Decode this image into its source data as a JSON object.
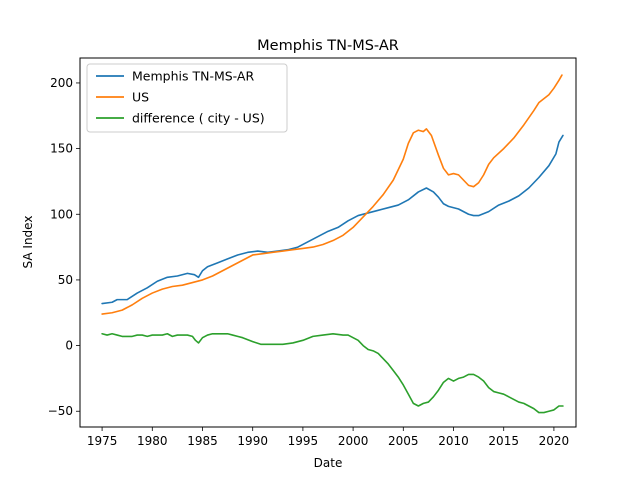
{
  "chart_data": {
    "type": "line",
    "title": "Memphis TN-MS-AR",
    "xlabel": "Date",
    "ylabel": "SA Index",
    "xlim": [
      1972.8,
      2022.2
    ],
    "ylim": [
      -62,
      219
    ],
    "xticks": [
      1975,
      1980,
      1985,
      1990,
      1995,
      2000,
      2005,
      2010,
      2015,
      2020
    ],
    "yticks": [
      -50,
      0,
      50,
      100,
      150,
      200
    ],
    "grid": false,
    "legend_position": "top-left",
    "series": [
      {
        "name": "Memphis TN-MS-AR",
        "color": "#1f77b4",
        "points": [
          [
            1975.0,
            32
          ],
          [
            1976.0,
            33
          ],
          [
            1976.5,
            35
          ],
          [
            1977.5,
            35
          ],
          [
            1978.5,
            40
          ],
          [
            1979.5,
            44
          ],
          [
            1980.5,
            49
          ],
          [
            1981.5,
            52
          ],
          [
            1982.5,
            53
          ],
          [
            1983.5,
            55
          ],
          [
            1984.2,
            54
          ],
          [
            1984.6,
            52
          ],
          [
            1985.0,
            57
          ],
          [
            1985.5,
            60
          ],
          [
            1986.5,
            63
          ],
          [
            1987.5,
            66
          ],
          [
            1988.5,
            69
          ],
          [
            1989.5,
            71
          ],
          [
            1990.5,
            72
          ],
          [
            1991.5,
            71
          ],
          [
            1992.5,
            72
          ],
          [
            1993.5,
            73
          ],
          [
            1994.5,
            75
          ],
          [
            1995.5,
            79
          ],
          [
            1996.5,
            83
          ],
          [
            1997.5,
            87
          ],
          [
            1998.5,
            90
          ],
          [
            1999.5,
            95
          ],
          [
            2000.5,
            99
          ],
          [
            2001.5,
            101
          ],
          [
            2002.5,
            103
          ],
          [
            2003.5,
            105
          ],
          [
            2004.5,
            107
          ],
          [
            2005.5,
            111
          ],
          [
            2006.5,
            117
          ],
          [
            2007.3,
            120
          ],
          [
            2008.0,
            117
          ],
          [
            2008.5,
            113
          ],
          [
            2009.0,
            108
          ],
          [
            2009.5,
            106
          ],
          [
            2010.5,
            104
          ],
          [
            2011.5,
            100
          ],
          [
            2012.0,
            99
          ],
          [
            2012.5,
            99
          ],
          [
            2013.5,
            102
          ],
          [
            2014.5,
            107
          ],
          [
            2015.5,
            110
          ],
          [
            2016.5,
            114
          ],
          [
            2017.5,
            120
          ],
          [
            2018.5,
            128
          ],
          [
            2019.5,
            137
          ],
          [
            2020.2,
            146
          ],
          [
            2020.5,
            155
          ],
          [
            2020.9,
            160
          ]
        ]
      },
      {
        "name": "US",
        "color": "#ff7f0e",
        "points": [
          [
            1975.0,
            24
          ],
          [
            1976.0,
            25
          ],
          [
            1977.0,
            27
          ],
          [
            1978.0,
            31
          ],
          [
            1979.0,
            36
          ],
          [
            1980.0,
            40
          ],
          [
            1981.0,
            43
          ],
          [
            1982.0,
            45
          ],
          [
            1983.0,
            46
          ],
          [
            1984.0,
            48
          ],
          [
            1985.0,
            50
          ],
          [
            1986.0,
            53
          ],
          [
            1987.0,
            57
          ],
          [
            1988.0,
            61
          ],
          [
            1989.0,
            65
          ],
          [
            1990.0,
            69
          ],
          [
            1991.0,
            70
          ],
          [
            1992.0,
            71
          ],
          [
            1993.0,
            72
          ],
          [
            1994.0,
            73
          ],
          [
            1995.0,
            74
          ],
          [
            1996.0,
            75
          ],
          [
            1997.0,
            77
          ],
          [
            1998.0,
            80
          ],
          [
            1999.0,
            84
          ],
          [
            2000.0,
            90
          ],
          [
            2001.0,
            98
          ],
          [
            2002.0,
            106
          ],
          [
            2003.0,
            115
          ],
          [
            2004.0,
            126
          ],
          [
            2005.0,
            142
          ],
          [
            2005.5,
            154
          ],
          [
            2006.0,
            162
          ],
          [
            2006.5,
            164
          ],
          [
            2007.0,
            163
          ],
          [
            2007.3,
            165
          ],
          [
            2007.8,
            160
          ],
          [
            2008.5,
            145
          ],
          [
            2009.0,
            135
          ],
          [
            2009.5,
            130
          ],
          [
            2010.0,
            131
          ],
          [
            2010.5,
            130
          ],
          [
            2011.0,
            126
          ],
          [
            2011.5,
            122
          ],
          [
            2012.0,
            121
          ],
          [
            2012.5,
            124
          ],
          [
            2013.0,
            130
          ],
          [
            2013.5,
            138
          ],
          [
            2014.0,
            143
          ],
          [
            2015.0,
            150
          ],
          [
            2016.0,
            158
          ],
          [
            2017.0,
            168
          ],
          [
            2018.0,
            179
          ],
          [
            2018.5,
            185
          ],
          [
            2019.5,
            191
          ],
          [
            2020.0,
            196
          ],
          [
            2020.5,
            202
          ],
          [
            2020.8,
            206
          ]
        ]
      },
      {
        "name": "difference ( city - US)",
        "color": "#2ca02c",
        "points": [
          [
            1975.0,
            9
          ],
          [
            1975.5,
            8
          ],
          [
            1976.0,
            9
          ],
          [
            1976.5,
            8
          ],
          [
            1977.0,
            7
          ],
          [
            1977.5,
            7
          ],
          [
            1978.0,
            7
          ],
          [
            1978.5,
            8
          ],
          [
            1979.0,
            8
          ],
          [
            1979.5,
            7
          ],
          [
            1980.0,
            8
          ],
          [
            1981.0,
            8
          ],
          [
            1981.5,
            9
          ],
          [
            1982.0,
            7
          ],
          [
            1982.5,
            8
          ],
          [
            1983.0,
            8
          ],
          [
            1983.5,
            8
          ],
          [
            1984.0,
            7
          ],
          [
            1984.3,
            4
          ],
          [
            1984.6,
            2
          ],
          [
            1985.0,
            6
          ],
          [
            1985.5,
            8
          ],
          [
            1986.0,
            9
          ],
          [
            1986.5,
            9
          ],
          [
            1987.0,
            9
          ],
          [
            1987.5,
            9
          ],
          [
            1988.0,
            8
          ],
          [
            1988.5,
            7
          ],
          [
            1989.0,
            6
          ],
          [
            1990.0,
            3
          ],
          [
            1990.8,
            1
          ],
          [
            1991.5,
            1
          ],
          [
            1992.5,
            1
          ],
          [
            1993.0,
            1
          ],
          [
            1994.0,
            2
          ],
          [
            1995.0,
            4
          ],
          [
            1996.0,
            7
          ],
          [
            1997.0,
            8
          ],
          [
            1998.0,
            9
          ],
          [
            1999.0,
            8
          ],
          [
            1999.5,
            8
          ],
          [
            2000.0,
            6
          ],
          [
            2000.5,
            4
          ],
          [
            2001.0,
            0
          ],
          [
            2001.5,
            -3
          ],
          [
            2002.0,
            -4
          ],
          [
            2002.5,
            -6
          ],
          [
            2003.0,
            -10
          ],
          [
            2003.5,
            -14
          ],
          [
            2004.0,
            -19
          ],
          [
            2004.5,
            -24
          ],
          [
            2005.0,
            -30
          ],
          [
            2005.5,
            -37
          ],
          [
            2006.0,
            -44
          ],
          [
            2006.5,
            -46
          ],
          [
            2007.0,
            -44
          ],
          [
            2007.5,
            -43
          ],
          [
            2008.0,
            -39
          ],
          [
            2008.5,
            -34
          ],
          [
            2009.0,
            -28
          ],
          [
            2009.5,
            -25
          ],
          [
            2010.0,
            -27
          ],
          [
            2010.5,
            -25
          ],
          [
            2011.0,
            -24
          ],
          [
            2011.5,
            -22
          ],
          [
            2012.0,
            -22
          ],
          [
            2012.5,
            -24
          ],
          [
            2013.0,
            -27
          ],
          [
            2013.5,
            -32
          ],
          [
            2014.0,
            -35
          ],
          [
            2014.5,
            -36
          ],
          [
            2015.0,
            -37
          ],
          [
            2015.5,
            -39
          ],
          [
            2016.0,
            -41
          ],
          [
            2016.5,
            -43
          ],
          [
            2017.0,
            -44
          ],
          [
            2017.5,
            -46
          ],
          [
            2018.0,
            -48
          ],
          [
            2018.5,
            -51
          ],
          [
            2019.0,
            -51
          ],
          [
            2019.5,
            -50
          ],
          [
            2020.0,
            -49
          ],
          [
            2020.5,
            -46
          ],
          [
            2020.9,
            -46
          ]
        ]
      }
    ]
  }
}
